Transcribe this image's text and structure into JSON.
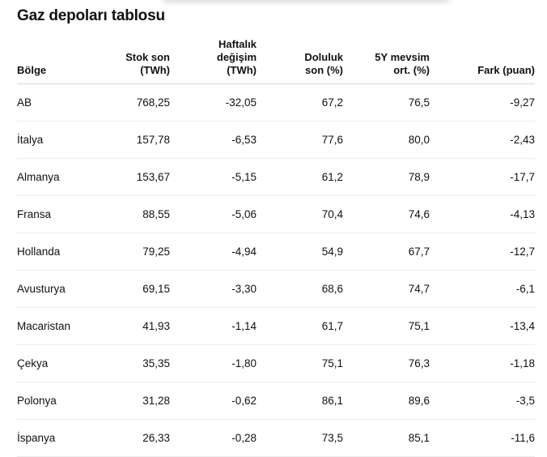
{
  "title": "Gaz depoları tablosu",
  "columns": {
    "region": [
      "Bölge"
    ],
    "stock": [
      "Stok son",
      "(TWh)"
    ],
    "weekly": [
      "Haftalık",
      "değişim",
      "(TWh)"
    ],
    "fill": [
      "Doluluk",
      "son (%)"
    ],
    "avg5y": [
      "5Y mevsim",
      "ort. (%)"
    ],
    "diff": [
      "Fark (puan)"
    ]
  },
  "rows": [
    {
      "region": "AB",
      "stock": "768,25",
      "weekly": "-32,05",
      "fill": "67,2",
      "avg5y": "76,5",
      "diff": "-9,27"
    },
    {
      "region": "İtalya",
      "stock": "157,78",
      "weekly": "-6,53",
      "fill": "77,6",
      "avg5y": "80,0",
      "diff": "-2,43"
    },
    {
      "region": "Almanya",
      "stock": "153,67",
      "weekly": "-5,15",
      "fill": "61,2",
      "avg5y": "78,9",
      "diff": "-17,7"
    },
    {
      "region": "Fransa",
      "stock": "88,55",
      "weekly": "-5,06",
      "fill": "70,4",
      "avg5y": "74,6",
      "diff": "-4,13"
    },
    {
      "region": "Hollanda",
      "stock": "79,25",
      "weekly": "-4,94",
      "fill": "54,9",
      "avg5y": "67,7",
      "diff": "-12,7"
    },
    {
      "region": "Avusturya",
      "stock": "69,15",
      "weekly": "-3,30",
      "fill": "68,6",
      "avg5y": "74,7",
      "diff": "-6,1"
    },
    {
      "region": "Macaristan",
      "stock": "41,93",
      "weekly": "-1,14",
      "fill": "61,7",
      "avg5y": "75,1",
      "diff": "-13,4"
    },
    {
      "region": "Çekya",
      "stock": "35,35",
      "weekly": "-1,80",
      "fill": "75,1",
      "avg5y": "76,3",
      "diff": "-1,18"
    },
    {
      "region": "Polonya",
      "stock": "31,28",
      "weekly": "-0,62",
      "fill": "86,1",
      "avg5y": "89,6",
      "diff": "-3,5"
    },
    {
      "region": "İspanya",
      "stock": "26,33",
      "weekly": "-0,28",
      "fill": "73,5",
      "avg5y": "85,1",
      "diff": "-11,6"
    }
  ]
}
